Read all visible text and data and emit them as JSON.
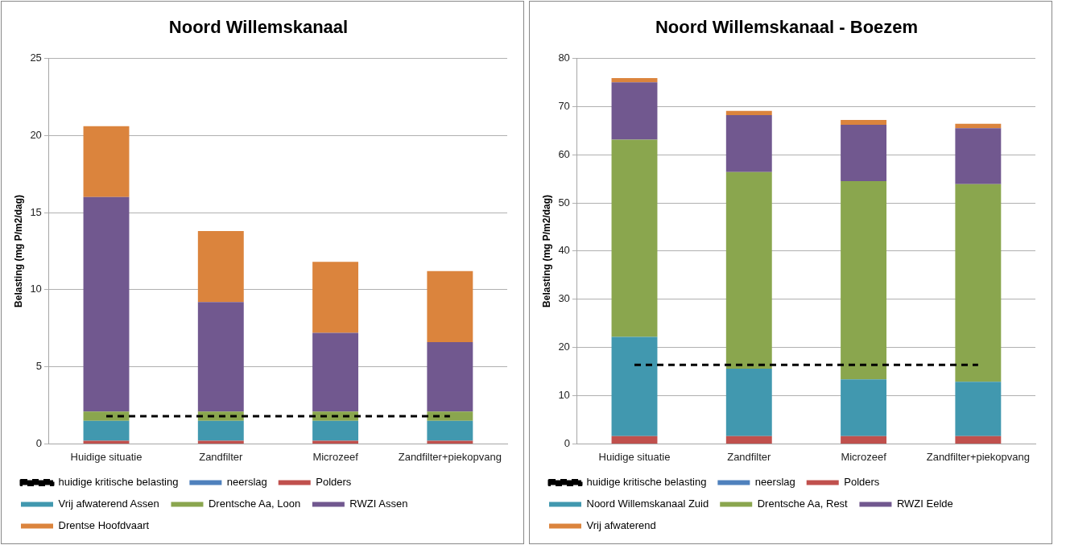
{
  "chart_data": [
    {
      "type": "bar",
      "stacked": true,
      "title": "Noord Willemskanaal",
      "ylabel": "Belasting (mg P/m2/dag)",
      "categories": [
        "Huidige situatie",
        "Zandfilter",
        "Microzeef",
        "Zandfilter+piekopvang"
      ],
      "ylim": [
        0,
        25
      ],
      "yticks": [
        0,
        5,
        10,
        15,
        20,
        25
      ],
      "grid": "y",
      "legend": "bottom",
      "series": [
        {
          "name": "neerslag",
          "color": "#4f81bd",
          "values": [
            0,
            0,
            0,
            0
          ]
        },
        {
          "name": "Polders",
          "color": "#c0504d",
          "values": [
            0.2,
            0.2,
            0.2,
            0.2
          ]
        },
        {
          "name": "Vrij afwaterend Assen",
          "color": "#4198af",
          "values": [
            1.3,
            1.3,
            1.3,
            1.3
          ]
        },
        {
          "name": "Drentsche Aa, Loon",
          "color": "#8aa64e",
          "values": [
            0.6,
            0.6,
            0.6,
            0.6
          ]
        },
        {
          "name": "RWZI Assen",
          "color": "#71588f",
          "values": [
            13.9,
            7.1,
            5.1,
            4.5
          ]
        },
        {
          "name": "Drentse Hoofdvaart",
          "color": "#db843d",
          "values": [
            4.6,
            4.6,
            4.6,
            4.6
          ]
        },
        {
          "name": "huidige kritische belasting",
          "type": "line",
          "color": "#000000",
          "line_style": "dashed",
          "marker": "none",
          "values": [
            1.8,
            1.8,
            1.8,
            1.8
          ]
        }
      ]
    },
    {
      "type": "bar",
      "stacked": true,
      "title": "Noord Willemskanaal - Boezem",
      "ylabel": "Belasting (mg P/m2/dag)",
      "categories": [
        "Huidige situatie",
        "Zandfilter",
        "Microzeef",
        "Zandfilter+piekopvang"
      ],
      "ylim": [
        0,
        80
      ],
      "yticks": [
        0,
        10,
        20,
        30,
        40,
        50,
        60,
        70,
        80
      ],
      "grid": "y",
      "legend": "bottom",
      "series": [
        {
          "name": "neerslag",
          "color": "#4f81bd",
          "values": [
            0,
            0,
            0,
            0
          ]
        },
        {
          "name": "Polders",
          "color": "#c0504d",
          "values": [
            1.6,
            1.6,
            1.6,
            1.6
          ]
        },
        {
          "name": "Noord Willemskanaal Zuid",
          "color": "#4198af",
          "values": [
            20.6,
            14.0,
            11.8,
            11.3
          ]
        },
        {
          "name": "Drentsche Aa, Rest",
          "color": "#8aa64e",
          "values": [
            40.9,
            40.8,
            41.1,
            41.0
          ]
        },
        {
          "name": "RWZI Eelde",
          "color": "#71588f",
          "values": [
            11.9,
            11.8,
            11.7,
            11.6
          ]
        },
        {
          "name": "Vrij afwaterend",
          "color": "#db843d",
          "values": [
            0.9,
            0.9,
            1.0,
            0.9
          ]
        },
        {
          "name": "huidige kritische belasting",
          "type": "line",
          "color": "#000000",
          "line_style": "dashed",
          "marker": "none",
          "values": [
            16.4,
            16.4,
            16.4,
            16.4
          ]
        }
      ]
    }
  ]
}
